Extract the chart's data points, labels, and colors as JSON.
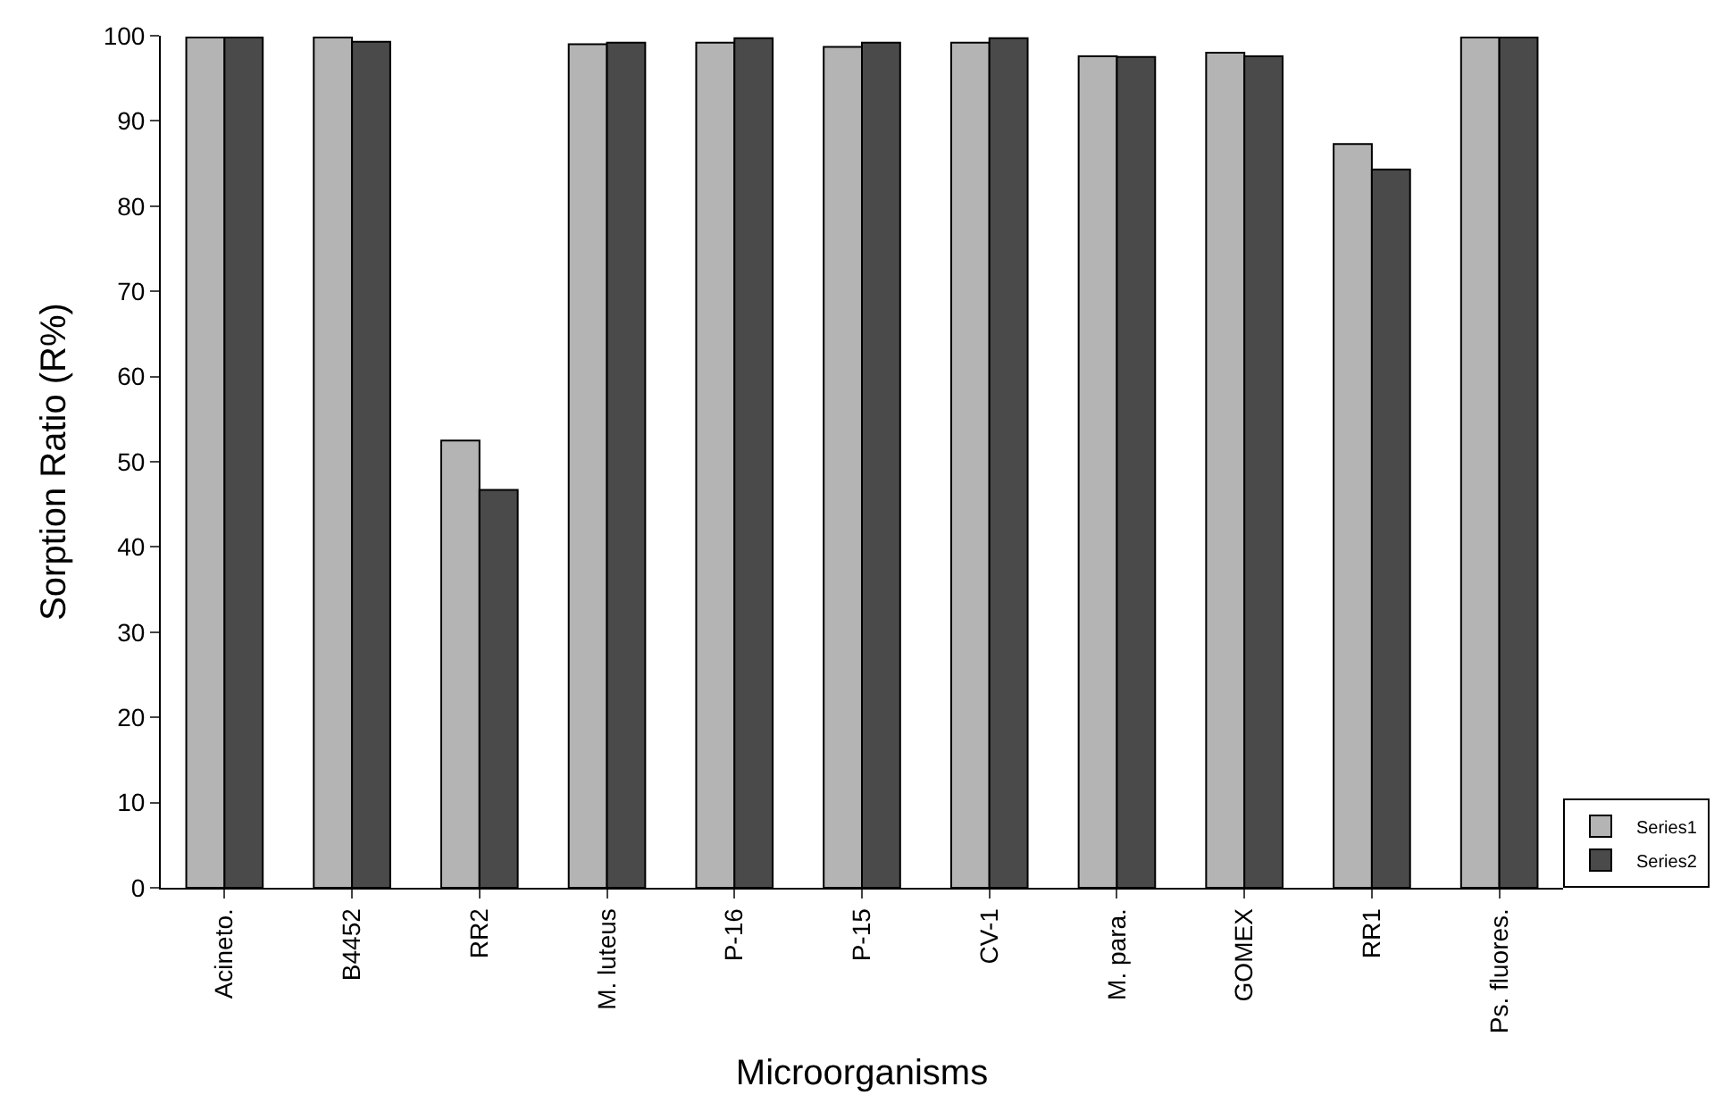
{
  "chart_data": {
    "type": "bar",
    "xlabel": "Microorganisms",
    "ylabel": "Sorption Ratio (R%)",
    "categories": [
      "Acineto.",
      "B4452",
      "RR2",
      "M. luteus",
      "P-16",
      "P-15",
      "CV-1",
      "M. para.",
      "GOMEX",
      "RR1",
      "Ps. fluores."
    ],
    "series": [
      {
        "name": "Series1",
        "color": "#b4b4b4",
        "values": [
          99.8,
          99.8,
          52.5,
          99.0,
          99.2,
          98.7,
          99.2,
          97.6,
          98.0,
          87.3,
          99.8
        ]
      },
      {
        "name": "Series2",
        "color": "#4a4a4a",
        "values": [
          99.8,
          99.3,
          46.7,
          99.2,
          99.7,
          99.2,
          99.7,
          97.5,
          97.6,
          84.3,
          99.8
        ]
      }
    ],
    "ylim": [
      0,
      100
    ],
    "yticks": [
      0,
      10,
      20,
      30,
      40,
      50,
      60,
      70,
      80,
      90,
      100
    ],
    "legend": "bottom right"
  }
}
